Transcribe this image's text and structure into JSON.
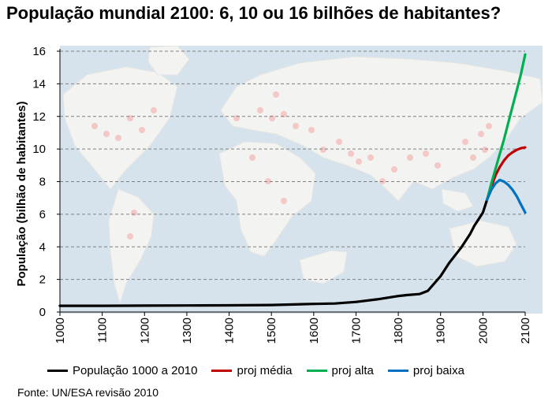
{
  "chart_data": {
    "type": "line",
    "title": "População mundial 2100: 6, 10 ou 16 bilhões de habitantes?",
    "ylabel": "População (bilhão de habitantes)",
    "xlabel": "",
    "xlim": [
      1000,
      2100
    ],
    "ylim": [
      0,
      16
    ],
    "x_ticks": [
      "1000",
      "1100",
      "1200",
      "1300",
      "1400",
      "1500",
      "1600",
      "1700",
      "1800",
      "1900",
      "2000",
      "2100"
    ],
    "y_ticks": [
      "0",
      "2",
      "4",
      "6",
      "8",
      "10",
      "12",
      "14",
      "16"
    ],
    "grid": "horizontal dashed",
    "legend_position": "bottom",
    "background": "world map",
    "series": [
      {
        "name": "População 1000 a 2010",
        "color": "#000000",
        "x": [
          1000,
          1100,
          1200,
          1300,
          1400,
          1500,
          1600,
          1650,
          1700,
          1750,
          1800,
          1820,
          1850,
          1870,
          1900,
          1920,
          1950,
          1960,
          1970,
          1980,
          1990,
          2000,
          2010
        ],
        "y": [
          0.38,
          0.38,
          0.39,
          0.4,
          0.41,
          0.43,
          0.5,
          0.52,
          0.62,
          0.78,
          0.98,
          1.04,
          1.1,
          1.3,
          2.2,
          3.0,
          4.0,
          4.4,
          4.8,
          5.3,
          5.7,
          6.1,
          6.9
        ]
      },
      {
        "name": "proj média",
        "color": "#c00000",
        "x": [
          2010,
          2020,
          2030,
          2040,
          2050,
          2060,
          2070,
          2080,
          2090,
          2100
        ],
        "y": [
          6.9,
          7.7,
          8.4,
          8.9,
          9.3,
          9.6,
          9.8,
          9.95,
          10.05,
          10.1
        ]
      },
      {
        "name": "proj alta",
        "color": "#00b050",
        "x": [
          2010,
          2020,
          2030,
          2040,
          2050,
          2060,
          2070,
          2080,
          2090,
          2100
        ],
        "y": [
          6.9,
          7.9,
          8.8,
          9.7,
          10.6,
          11.6,
          12.6,
          13.6,
          14.6,
          15.8
        ]
      },
      {
        "name": "proj baixa",
        "color": "#0070c0",
        "x": [
          2010,
          2020,
          2030,
          2040,
          2050,
          2060,
          2070,
          2080,
          2090,
          2100
        ],
        "y": [
          6.9,
          7.5,
          7.9,
          8.1,
          8.0,
          7.8,
          7.5,
          7.1,
          6.6,
          6.1
        ]
      }
    ]
  },
  "source": "Fonte: UN/ESA revisão 2010"
}
